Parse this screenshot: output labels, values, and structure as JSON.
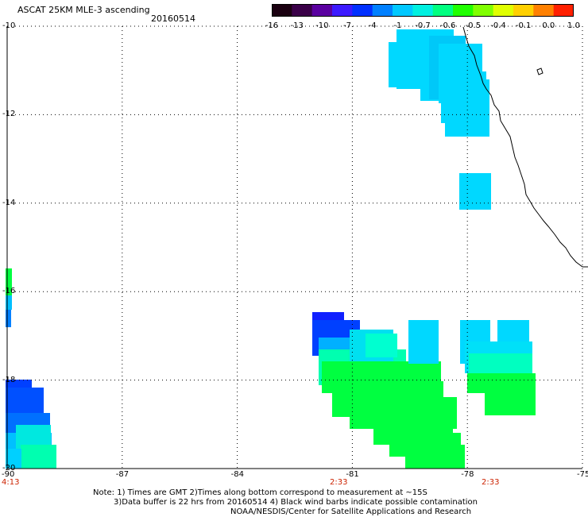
{
  "header": {
    "title": "ASCAT 25KM MLE-3 ascending",
    "date": "20160514"
  },
  "colorbar": {
    "labels": [
      "-16",
      "-13",
      "-10",
      "-7",
      "-4",
      "-1",
      "-0.7",
      "-0.6",
      "-0.5",
      "-0.4",
      "-0.1",
      "0.0",
      "1.0"
    ],
    "colors": [
      "#1a0010",
      "#3a0048",
      "#5a00a0",
      "#3c1aff",
      "#0030ff",
      "#0080ff",
      "#00c8ff",
      "#00f0e0",
      "#00ff80",
      "#20ff00",
      "#80ff00",
      "#e0ff00",
      "#ffd000",
      "#ff8000",
      "#ff2000"
    ]
  },
  "axes": {
    "lat_labels": [
      "-10",
      "-12",
      "-14",
      "-16",
      "-18",
      "-20"
    ],
    "lon_labels": [
      "-90",
      "-87",
      "-84",
      "-81",
      "-78",
      "-75"
    ],
    "time_labels": [
      "4:13",
      "2:33",
      "2:33"
    ],
    "time_color": "#cc2200"
  },
  "notes": {
    "line1": "Note: 1) Times are GMT 2)Times along bottom correspond to measurement at ~15S",
    "line2": "3)Data buffer is 22 hrs from 20160514 4) Black wind barbs indicate possible contamination",
    "line3": "NOAA/NESDIS/Center for Satellite Applications and Research"
  },
  "colors": {
    "cyan": "#00d8ff",
    "light_cyan": "#00e8f0",
    "aqua_green": "#00ffb0",
    "green": "#00ff40",
    "blue": "#0060ff",
    "dark_blue": "#1020ff"
  }
}
